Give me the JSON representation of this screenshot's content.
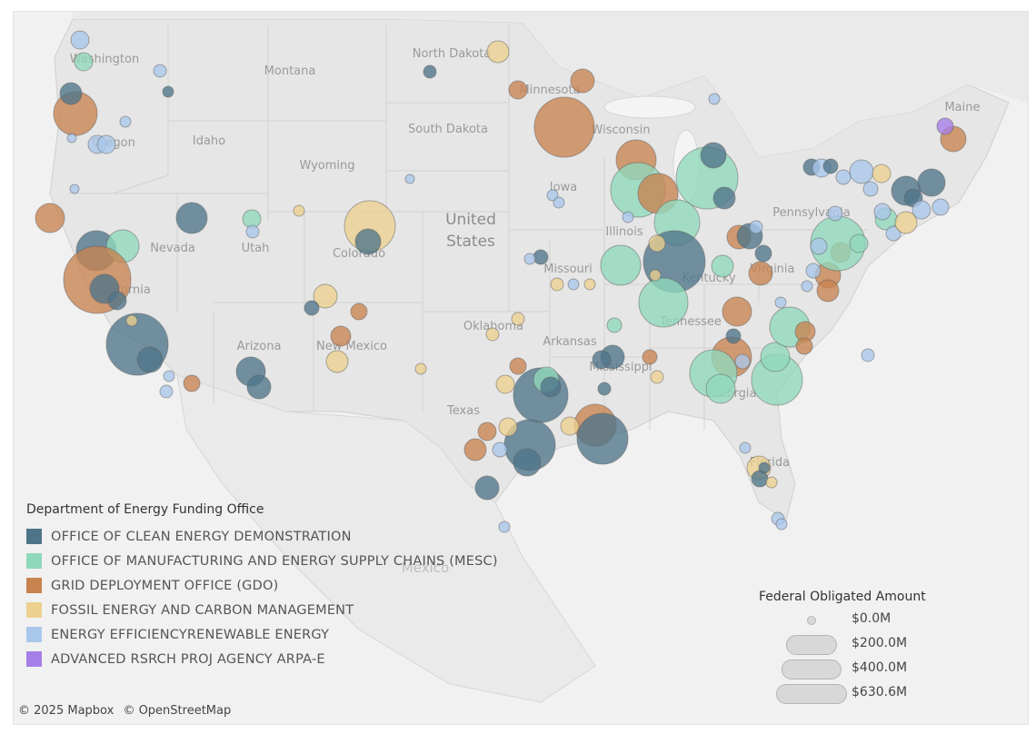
{
  "map": {
    "country_label_line1": "United",
    "country_label_line2": "States",
    "mexico_label": "Mexico",
    "states": [
      {
        "name": "Washington"
      },
      {
        "name": "Montana"
      },
      {
        "name": "North Dakota"
      },
      {
        "name": "Minnesota"
      },
      {
        "name": "Oregon"
      },
      {
        "name": "Idaho"
      },
      {
        "name": "South Dakota"
      },
      {
        "name": "Wisconsin"
      },
      {
        "name": "Wyoming"
      },
      {
        "name": "Maine"
      },
      {
        "name": "Nevada"
      },
      {
        "name": "Utah"
      },
      {
        "name": "Iowa"
      },
      {
        "name": "Colorado"
      },
      {
        "name": "Illinois"
      },
      {
        "name": "Pennsylvania"
      },
      {
        "name": "California"
      },
      {
        "name": "Missouri"
      },
      {
        "name": "Virginia"
      },
      {
        "name": "Kentucky"
      },
      {
        "name": "Oklahoma"
      },
      {
        "name": "Tennessee"
      },
      {
        "name": "Arizona"
      },
      {
        "name": "New Mexico"
      },
      {
        "name": "Arkansas"
      },
      {
        "name": "Mississippi"
      },
      {
        "name": "Georgia"
      },
      {
        "name": "Texas"
      },
      {
        "name": "Florida"
      }
    ]
  },
  "legend": {
    "title": "Department of Energy Funding Office",
    "items": [
      {
        "label": "OFFICE OF CLEAN ENERGY DEMONSTRATION",
        "color": "#4e7489"
      },
      {
        "label": "OFFICE OF MANUFACTURING AND ENERGY SUPPLY CHAINS (MESC)",
        "color": "#8fd8bb"
      },
      {
        "label": "GRID DEPLOYMENT OFFICE (GDO)",
        "color": "#c8834f"
      },
      {
        "label": "FOSSIL ENERGY AND CARBON MANAGEMENT",
        "color": "#ecd08e"
      },
      {
        "label": "ENERGY EFFICIENCYRENEWABLE ENERGY",
        "color": "#a9c7ea"
      },
      {
        "label": "ADVANCED RSRCH PROJ AGENCY ARPA-E",
        "color": "#a67ee8"
      }
    ]
  },
  "size_legend": {
    "title": "Federal Obligated Amount",
    "items": [
      {
        "label": "$0.0M",
        "value": 0
      },
      {
        "label": "$200.0M",
        "value": 200
      },
      {
        "label": "$400.0M",
        "value": 400
      },
      {
        "label": "$630.6M",
        "value": 630.6
      }
    ]
  },
  "attribution": {
    "mapbox": "© 2025 Mapbox",
    "osm": "© OpenStreetMap"
  }
}
